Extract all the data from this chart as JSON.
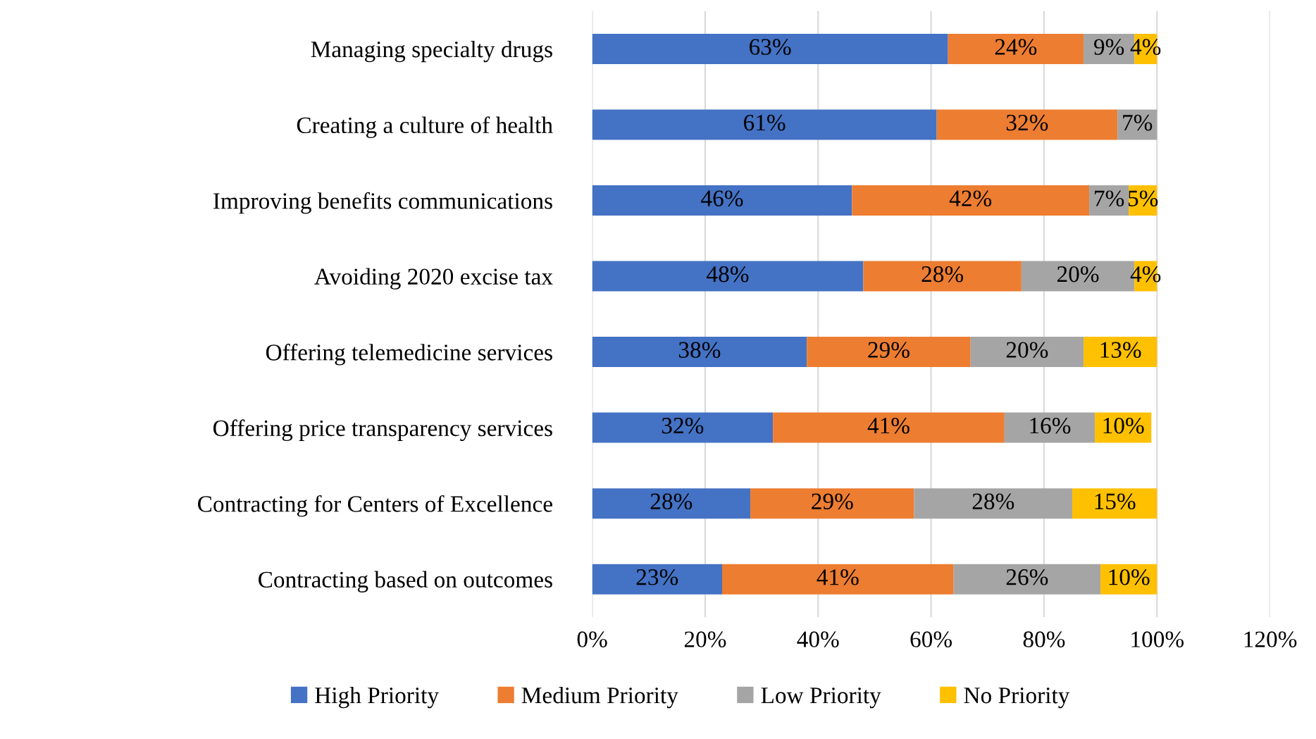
{
  "chart_data": {
    "type": "bar",
    "orientation": "horizontal",
    "stacked": true,
    "categories": [
      "Managing specialty drugs",
      "Creating a culture of health",
      "Improving benefits communications",
      "Avoiding 2020 excise tax",
      "Offering telemedicine services",
      "Offering price transparency services",
      "Contracting for Centers of Excellence",
      "Contracting based on outcomes"
    ],
    "series": [
      {
        "name": "High Priority",
        "color": "#4472c4",
        "values": [
          63,
          61,
          46,
          48,
          38,
          32,
          28,
          23
        ],
        "value_labels": [
          "63%",
          "61%",
          "46%",
          "48%",
          "38%",
          "32%",
          "28%",
          "23%"
        ]
      },
      {
        "name": "Medium Priority",
        "color": "#ed7d31",
        "values": [
          24,
          32,
          42,
          28,
          29,
          41,
          29,
          41
        ],
        "value_labels": [
          "24%",
          "32%",
          "42%",
          "28%",
          "29%",
          "41%",
          "29%",
          "41%"
        ]
      },
      {
        "name": "Low Priority",
        "color": "#a5a5a5",
        "values": [
          9,
          7,
          7,
          20,
          20,
          16,
          28,
          26
        ],
        "value_labels": [
          "9%",
          "7%",
          "7%",
          "20%",
          "20%",
          "16%",
          "28%",
          "26%"
        ]
      },
      {
        "name": "No Priority",
        "color": "#ffc000",
        "values": [
          4,
          null,
          5,
          4,
          13,
          10,
          15,
          10
        ],
        "value_labels": [
          "4%",
          null,
          "5%",
          "4%",
          "13%",
          "10%",
          "15%",
          "10%"
        ]
      }
    ],
    "xlim": [
      0,
      120
    ],
    "xticks": [
      {
        "value": 0,
        "label": "0%"
      },
      {
        "value": 20,
        "label": "20%"
      },
      {
        "value": 40,
        "label": "40%"
      },
      {
        "value": 60,
        "label": "60%"
      },
      {
        "value": 80,
        "label": "80%"
      },
      {
        "value": 100,
        "label": "100%"
      },
      {
        "value": 120,
        "label": "120%"
      }
    ],
    "grid": "x",
    "legend": "bottom"
  }
}
